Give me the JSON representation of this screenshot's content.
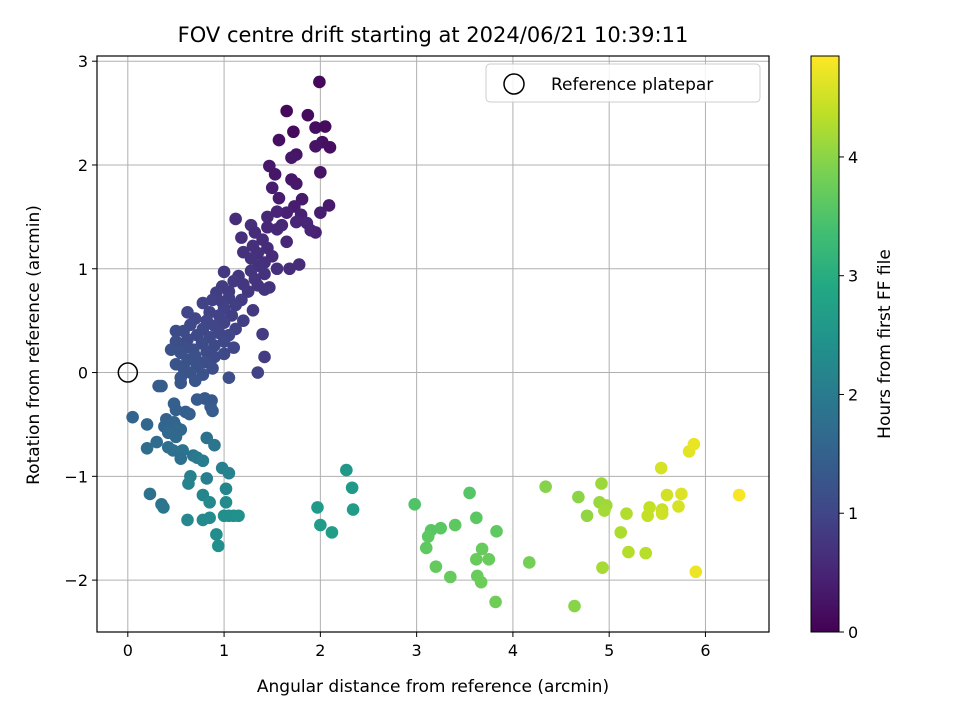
{
  "chart_data": {
    "type": "scatter",
    "title": "FOV centre drift starting at 2024/06/21 10:39:11",
    "xlabel": "Angular distance from reference (arcmin)",
    "ylabel": "Rotation from reference (arcmin)",
    "xlim": [
      -0.32,
      6.66
    ],
    "ylim": [
      -2.5,
      3.05
    ],
    "x_ticks": [
      0,
      1,
      2,
      3,
      4,
      5,
      6
    ],
    "y_ticks": [
      -2,
      -1,
      0,
      1,
      2,
      3
    ],
    "x_tick_labels": [
      "0",
      "1",
      "2",
      "3",
      "4",
      "5",
      "6"
    ],
    "y_tick_labels": [
      "−2",
      "−1",
      "0",
      "1",
      "2",
      "3"
    ],
    "grid": true,
    "legend_position": "top-right",
    "legend_label": "Reference platepar",
    "reference_point": {
      "x": 0,
      "y": 0
    },
    "colorbar": {
      "label": "Hours from first FF file",
      "colormap": "viridis",
      "range": [
        0,
        4.85
      ],
      "ticks": [
        0,
        1,
        2,
        3,
        4
      ],
      "tick_labels": [
        "0",
        "1",
        "2",
        "3",
        "4"
      ]
    },
    "points": [
      [
        1.99,
        2.8,
        0.1
      ],
      [
        1.65,
        2.52,
        0.1
      ],
      [
        1.87,
        2.48,
        0.15
      ],
      [
        1.72,
        2.32,
        0.12
      ],
      [
        1.95,
        2.36,
        0.18
      ],
      [
        2.05,
        2.37,
        0.15
      ],
      [
        1.57,
        2.24,
        0.2
      ],
      [
        2.02,
        2.22,
        0.22
      ],
      [
        2.1,
        2.17,
        0.2
      ],
      [
        1.95,
        2.18,
        0.25
      ],
      [
        1.75,
        2.1,
        0.28
      ],
      [
        1.7,
        2.07,
        0.3
      ],
      [
        1.47,
        1.99,
        0.32
      ],
      [
        2.0,
        1.93,
        0.25
      ],
      [
        1.53,
        1.91,
        0.3
      ],
      [
        1.7,
        1.86,
        0.3
      ],
      [
        1.75,
        1.82,
        0.32
      ],
      [
        1.5,
        1.78,
        0.4
      ],
      [
        1.57,
        1.68,
        0.38
      ],
      [
        1.81,
        1.67,
        0.35
      ],
      [
        2.09,
        1.61,
        0.35
      ],
      [
        1.73,
        1.6,
        0.4
      ],
      [
        2.0,
        1.54,
        0.4
      ],
      [
        1.65,
        1.54,
        0.45
      ],
      [
        1.55,
        1.55,
        0.5
      ],
      [
        1.8,
        1.52,
        0.45
      ],
      [
        1.45,
        1.5,
        0.55
      ],
      [
        1.12,
        1.48,
        0.6
      ],
      [
        1.6,
        1.42,
        0.55
      ],
      [
        1.75,
        1.45,
        0.5
      ],
      [
        1.86,
        1.44,
        0.5
      ],
      [
        1.95,
        1.35,
        0.45
      ],
      [
        1.9,
        1.37,
        0.5
      ],
      [
        1.45,
        1.4,
        0.55
      ],
      [
        1.28,
        1.42,
        0.65
      ],
      [
        1.55,
        1.38,
        0.55
      ],
      [
        1.32,
        1.35,
        0.6
      ],
      [
        1.18,
        1.3,
        0.65
      ],
      [
        1.4,
        1.28,
        0.6
      ],
      [
        1.65,
        1.26,
        0.55
      ],
      [
        1.3,
        1.22,
        0.65
      ],
      [
        1.45,
        1.2,
        0.6
      ],
      [
        1.2,
        1.16,
        0.7
      ],
      [
        1.35,
        1.15,
        0.65
      ],
      [
        1.5,
        1.12,
        0.6
      ],
      [
        1.28,
        1.1,
        0.7
      ],
      [
        1.42,
        1.06,
        0.65
      ],
      [
        1.36,
        1.03,
        0.7
      ],
      [
        1.78,
        1.04,
        0.6
      ],
      [
        1.68,
        1.0,
        0.62
      ],
      [
        1.55,
        1.0,
        0.65
      ],
      [
        1.28,
        0.98,
        0.72
      ],
      [
        1.42,
        0.95,
        0.7
      ],
      [
        1.15,
        0.93,
        0.75
      ],
      [
        1.32,
        0.9,
        0.72
      ],
      [
        1.0,
        0.97,
        0.8
      ],
      [
        1.1,
        0.88,
        0.8
      ],
      [
        1.2,
        0.85,
        0.78
      ],
      [
        0.98,
        0.83,
        0.85
      ],
      [
        1.35,
        0.84,
        0.72
      ],
      [
        1.47,
        0.82,
        0.7
      ],
      [
        1.05,
        0.78,
        0.85
      ],
      [
        1.25,
        0.78,
        0.78
      ],
      [
        0.92,
        0.77,
        0.88
      ],
      [
        1.42,
        0.8,
        0.72
      ],
      [
        1.05,
        0.72,
        0.88
      ],
      [
        1.18,
        0.7,
        0.85
      ],
      [
        0.88,
        0.7,
        0.92
      ],
      [
        0.98,
        0.68,
        0.9
      ],
      [
        0.78,
        0.67,
        0.95
      ],
      [
        1.12,
        0.65,
        0.88
      ],
      [
        1.0,
        0.62,
        0.92
      ],
      [
        1.3,
        0.6,
        0.8
      ],
      [
        0.62,
        0.58,
        1.0
      ],
      [
        0.85,
        0.58,
        0.95
      ],
      [
        1.08,
        0.55,
        0.9
      ],
      [
        0.95,
        0.55,
        0.95
      ],
      [
        0.7,
        0.52,
        1.0
      ],
      [
        0.82,
        0.5,
        1.0
      ],
      [
        1.2,
        0.5,
        0.88
      ],
      [
        1.0,
        0.48,
        0.95
      ],
      [
        0.65,
        0.46,
        1.05
      ],
      [
        0.9,
        0.45,
        1.0
      ],
      [
        1.12,
        0.42,
        0.92
      ],
      [
        0.78,
        0.42,
        1.05
      ],
      [
        0.5,
        0.4,
        1.1
      ],
      [
        0.58,
        0.4,
        1.1
      ],
      [
        0.95,
        0.38,
        1.02
      ],
      [
        1.05,
        0.36,
        1.0
      ],
      [
        0.72,
        0.36,
        1.08
      ],
      [
        1.4,
        0.37,
        0.85
      ],
      [
        0.85,
        0.34,
        1.05
      ],
      [
        0.62,
        0.32,
        1.12
      ],
      [
        1.0,
        0.3,
        1.05
      ],
      [
        0.5,
        0.3,
        1.15
      ],
      [
        0.77,
        0.28,
        1.1
      ],
      [
        0.9,
        0.26,
        1.08
      ],
      [
        0.6,
        0.24,
        1.15
      ],
      [
        1.1,
        0.24,
        1.0
      ],
      [
        0.45,
        0.22,
        1.2
      ],
      [
        0.68,
        0.22,
        1.15
      ],
      [
        0.82,
        0.2,
        1.12
      ],
      [
        0.55,
        0.19,
        1.2
      ],
      [
        1.0,
        0.18,
        1.08
      ],
      [
        0.7,
        0.16,
        1.18
      ],
      [
        0.9,
        0.15,
        1.12
      ],
      [
        1.42,
        0.15,
        0.85
      ],
      [
        0.62,
        0.12,
        1.2
      ],
      [
        0.8,
        0.1,
        1.15
      ],
      [
        0.5,
        0.08,
        1.25
      ],
      [
        0.72,
        0.06,
        1.2
      ],
      [
        0.58,
        0.04,
        1.25
      ],
      [
        0.88,
        0.04,
        1.15
      ],
      [
        1.35,
        0.0,
        0.95
      ],
      [
        0.65,
        0.0,
        1.25
      ],
      [
        0.78,
        -0.02,
        1.22
      ],
      [
        1.05,
        -0.05,
        1.15
      ],
      [
        0.55,
        -0.05,
        1.3
      ],
      [
        0.7,
        -0.08,
        1.28
      ],
      [
        0.55,
        -0.1,
        1.3
      ],
      [
        0.32,
        -0.13,
        1.4
      ],
      [
        0.35,
        -0.13,
        1.4
      ],
      [
        0.8,
        -0.25,
        1.35
      ],
      [
        0.72,
        -0.26,
        1.38
      ],
      [
        0.87,
        -0.27,
        1.35
      ],
      [
        0.48,
        -0.3,
        1.45
      ],
      [
        0.86,
        -0.33,
        1.38
      ],
      [
        0.5,
        -0.36,
        1.48
      ],
      [
        0.6,
        -0.38,
        1.45
      ],
      [
        0.64,
        -0.4,
        1.45
      ],
      [
        0.88,
        -0.37,
        1.42
      ],
      [
        0.05,
        -0.43,
        1.55
      ],
      [
        0.4,
        -0.45,
        1.52
      ],
      [
        0.48,
        -0.48,
        1.55
      ],
      [
        0.2,
        -0.5,
        1.6
      ],
      [
        0.38,
        -0.52,
        1.58
      ],
      [
        0.5,
        -0.52,
        1.6
      ],
      [
        0.55,
        -0.55,
        1.62
      ],
      [
        0.42,
        -0.58,
        1.62
      ],
      [
        0.5,
        -0.62,
        1.65
      ],
      [
        0.3,
        -0.67,
        1.7
      ],
      [
        0.2,
        -0.73,
        1.72
      ],
      [
        0.42,
        -0.72,
        1.75
      ],
      [
        0.47,
        -0.75,
        1.78
      ],
      [
        0.82,
        -0.63,
        1.8
      ],
      [
        0.9,
        -0.7,
        1.9
      ],
      [
        0.57,
        -0.75,
        1.85
      ],
      [
        0.68,
        -0.8,
        1.9
      ],
      [
        0.72,
        -0.82,
        1.95
      ],
      [
        0.55,
        -0.83,
        1.75
      ],
      [
        0.78,
        -0.85,
        2.0
      ],
      [
        0.98,
        -0.92,
        2.1
      ],
      [
        1.05,
        -0.97,
        2.15
      ],
      [
        0.82,
        -1.02,
        2.05
      ],
      [
        0.65,
        -1.0,
        2.1
      ],
      [
        0.63,
        -1.07,
        2.15
      ],
      [
        1.02,
        -1.12,
        2.2
      ],
      [
        0.23,
        -1.17,
        1.8
      ],
      [
        0.35,
        -1.27,
        1.85
      ],
      [
        0.37,
        -1.3,
        1.9
      ],
      [
        0.78,
        -1.18,
        2.2
      ],
      [
        0.85,
        -1.25,
        2.25
      ],
      [
        1.02,
        -1.25,
        2.3
      ],
      [
        1.05,
        -1.38,
        2.35
      ],
      [
        1.1,
        -1.38,
        2.4
      ],
      [
        1.15,
        -1.38,
        2.42
      ],
      [
        1.0,
        -1.38,
        2.38
      ],
      [
        0.85,
        -1.4,
        2.3
      ],
      [
        0.78,
        -1.42,
        2.28
      ],
      [
        0.62,
        -1.42,
        2.25
      ],
      [
        0.92,
        -1.56,
        2.35
      ],
      [
        0.94,
        -1.67,
        2.4
      ],
      [
        2.27,
        -0.94,
        2.55
      ],
      [
        2.33,
        -1.11,
        2.6
      ],
      [
        1.97,
        -1.3,
        2.62
      ],
      [
        2.34,
        -1.32,
        2.65
      ],
      [
        2.0,
        -1.47,
        2.66
      ],
      [
        2.12,
        -1.54,
        2.68
      ],
      [
        2.98,
        -1.27,
        3.5
      ],
      [
        3.55,
        -1.16,
        3.55
      ],
      [
        3.15,
        -1.52,
        3.58
      ],
      [
        3.25,
        -1.5,
        3.6
      ],
      [
        3.4,
        -1.47,
        3.62
      ],
      [
        3.62,
        -1.4,
        3.6
      ],
      [
        3.83,
        -1.53,
        3.65
      ],
      [
        3.12,
        -1.58,
        3.62
      ],
      [
        3.1,
        -1.69,
        3.65
      ],
      [
        3.68,
        -1.7,
        3.7
      ],
      [
        3.2,
        -1.87,
        3.68
      ],
      [
        3.35,
        -1.97,
        3.7
      ],
      [
        3.62,
        -1.8,
        3.72
      ],
      [
        3.75,
        -1.8,
        3.73
      ],
      [
        3.63,
        -1.96,
        3.72
      ],
      [
        3.67,
        -2.02,
        3.75
      ],
      [
        3.82,
        -2.21,
        3.78
      ],
      [
        4.17,
        -1.83,
        3.82
      ],
      [
        4.34,
        -1.1,
        3.95
      ],
      [
        4.64,
        -2.25,
        3.98
      ],
      [
        4.68,
        -1.2,
        4.0
      ],
      [
        4.77,
        -1.38,
        4.05
      ],
      [
        4.9,
        -1.25,
        4.1
      ],
      [
        4.92,
        -1.07,
        4.12
      ],
      [
        4.97,
        -1.28,
        4.15
      ],
      [
        4.95,
        -1.33,
        4.18
      ],
      [
        4.93,
        -1.88,
        4.2
      ],
      [
        5.12,
        -1.54,
        4.25
      ],
      [
        5.18,
        -1.36,
        4.28
      ],
      [
        5.2,
        -1.73,
        4.3
      ],
      [
        5.38,
        -1.74,
        4.32
      ],
      [
        5.42,
        -1.3,
        4.4
      ],
      [
        5.4,
        -1.38,
        4.42
      ],
      [
        5.55,
        -1.32,
        4.45
      ],
      [
        5.55,
        -1.36,
        4.5
      ],
      [
        5.6,
        -1.18,
        4.52
      ],
      [
        5.54,
        -0.92,
        4.55
      ],
      [
        5.72,
        -1.29,
        4.55
      ],
      [
        5.75,
        -1.17,
        4.6
      ],
      [
        5.83,
        -0.76,
        4.65
      ],
      [
        5.88,
        -0.69,
        4.7
      ],
      [
        5.9,
        -1.92,
        4.72
      ],
      [
        6.35,
        -1.18,
        4.8
      ]
    ]
  }
}
